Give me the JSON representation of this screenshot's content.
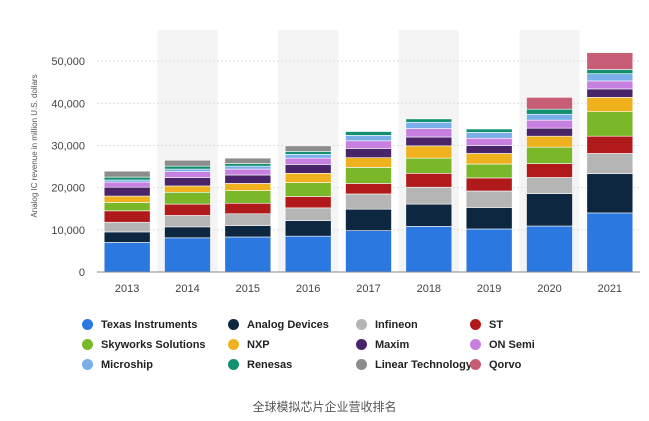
{
  "chart_data": {
    "type": "bar",
    "stacked": true,
    "title": "",
    "xlabel": "",
    "ylabel": "Analog IC revenue in million U.S. dollars",
    "ylim": [
      0,
      55000
    ],
    "yticks": [
      0,
      10000,
      20000,
      30000,
      40000,
      50000
    ],
    "ytick_labels": [
      "0",
      "10,000",
      "20,000",
      "30,000",
      "40,000",
      "50,000"
    ],
    "categories": [
      "2013",
      "2014",
      "2015",
      "2016",
      "2017",
      "2018",
      "2019",
      "2020",
      "2021"
    ],
    "series": [
      {
        "name": "Texas Instruments",
        "color": "#2a78e0",
        "values": [
          7000,
          8100,
          8300,
          8500,
          9800,
          10800,
          10200,
          10900,
          14000
        ]
      },
      {
        "name": "Analog Devices",
        "color": "#0e2740",
        "values": [
          2500,
          2600,
          2700,
          3700,
          5100,
          5300,
          5100,
          7700,
          9300
        ]
      },
      {
        "name": "Infineon",
        "color": "#b5b5b5",
        "values": [
          2300,
          2700,
          2800,
          3000,
          3600,
          4000,
          3900,
          3800,
          4800
        ]
      },
      {
        "name": "ST",
        "color": "#b01a1a",
        "values": [
          2700,
          2700,
          2500,
          2700,
          2500,
          3300,
          3100,
          3300,
          4100
        ]
      },
      {
        "name": "Skyworks Solutions",
        "color": "#7ab82a",
        "values": [
          2000,
          2800,
          3000,
          3300,
          3800,
          3600,
          3300,
          3900,
          5800
        ]
      },
      {
        "name": "NXP",
        "color": "#efb21e",
        "values": [
          1500,
          1500,
          1700,
          2200,
          2300,
          2900,
          2500,
          2600,
          3400
        ]
      },
      {
        "name": "Maxim",
        "color": "#4a2468",
        "values": [
          2100,
          2000,
          2000,
          2100,
          2200,
          2100,
          1900,
          1900,
          2000
        ]
      },
      {
        "name": "ON Semi",
        "color": "#c880e0",
        "values": [
          1200,
          1400,
          1400,
          1500,
          1800,
          2000,
          1700,
          1900,
          1900
        ]
      },
      {
        "name": "Microship",
        "color": "#79aee8",
        "values": [
          500,
          600,
          700,
          900,
          1300,
          1500,
          1400,
          1400,
          1700
        ]
      },
      {
        "name": "Renesas",
        "color": "#139070",
        "values": [
          700,
          700,
          600,
          700,
          900,
          800,
          800,
          1200,
          1000
        ]
      },
      {
        "name": "Linear Technology",
        "color": "#8c8c8c",
        "values": [
          1400,
          1400,
          1300,
          1300,
          0,
          0,
          0,
          0,
          0
        ]
      },
      {
        "name": "Qorvo",
        "color": "#c85e75",
        "values": [
          0,
          0,
          0,
          0,
          0,
          0,
          0,
          2800,
          4000
        ]
      }
    ]
  },
  "caption": "全球模拟芯片企业营收排名"
}
